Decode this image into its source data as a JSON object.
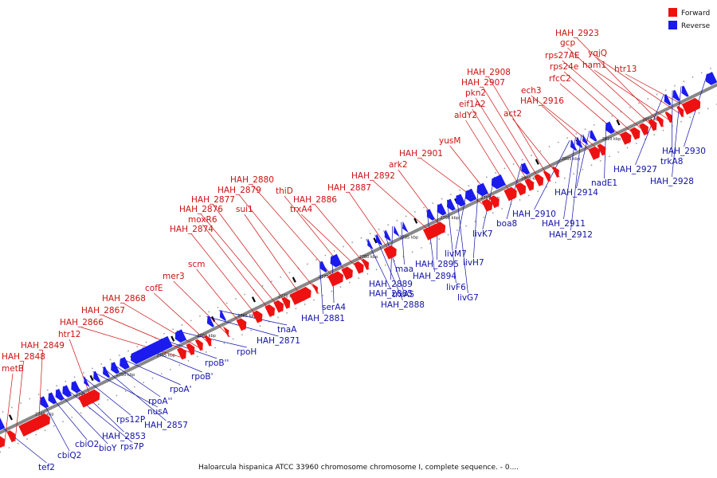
{
  "legend": {
    "forward": {
      "label": "Forward",
      "color": "#ee1111"
    },
    "reverse": {
      "label": "Reverse",
      "color": "#1b1bee"
    }
  },
  "caption": "Haloarcula hispanica ATCC 33960 chromosome chromosome I, complete sequence. - 0....",
  "axis": {
    "unit": "kbp",
    "ticks": [
      {
        "label": "2740 kbp",
        "kbp": 2740
      },
      {
        "label": "2745 kbp",
        "kbp": 2745
      },
      {
        "label": "2750 kbp",
        "kbp": 2750
      },
      {
        "label": "2755 kbp",
        "kbp": 2755
      },
      {
        "label": "2760 kbp",
        "kbp": 2760
      },
      {
        "label": "2765 kbp",
        "kbp": 2765
      },
      {
        "label": "2770 kbp",
        "kbp": 2770
      },
      {
        "label": "2775 kbp",
        "kbp": 2775
      },
      {
        "label": "2780 kbp",
        "kbp": 2780
      },
      {
        "label": "2785 kbp",
        "kbp": 2785
      },
      {
        "label": "2790 kbp",
        "kbp": 2790
      },
      {
        "label": "2795 kbp",
        "kbp": 2795
      },
      {
        "label": "2800 kbp",
        "kbp": 2800
      },
      {
        "label": "2805 kbp",
        "kbp": 2805
      },
      {
        "label": "2810 kbp",
        "kbp": 2810
      },
      {
        "label": "2815 kbp",
        "kbp": 2815
      }
    ]
  },
  "forward_genes": [
    {
      "name": "metB"
    },
    {
      "name": "HAH_2848"
    },
    {
      "name": "HAH_2849"
    },
    {
      "name": "htr12"
    },
    {
      "name": "HAH_2866"
    },
    {
      "name": "HAH_2867"
    },
    {
      "name": "HAH_2868"
    },
    {
      "name": "cofE"
    },
    {
      "name": "mer3"
    },
    {
      "name": "scm"
    },
    {
      "name": "HAH_2874"
    },
    {
      "name": "moxR6"
    },
    {
      "name": "HAH_2876"
    },
    {
      "name": "HAH_2877"
    },
    {
      "name": "sui1"
    },
    {
      "name": "HAH_2879"
    },
    {
      "name": "HAH_2880"
    },
    {
      "name": "thiD"
    },
    {
      "name": "trxA4"
    },
    {
      "name": "HAH_2886"
    },
    {
      "name": "HAH_2887"
    },
    {
      "name": "HAH_2892"
    },
    {
      "name": "ark2"
    },
    {
      "name": "HAH_2901"
    },
    {
      "name": "yusM"
    },
    {
      "name": "aldY2"
    },
    {
      "name": "eif1A2"
    },
    {
      "name": "pkn2"
    },
    {
      "name": "HAH_2907"
    },
    {
      "name": "HAH_2908"
    },
    {
      "name": "act2"
    },
    {
      "name": "HAH_2916"
    },
    {
      "name": "ech3"
    },
    {
      "name": "rfcC2"
    },
    {
      "name": "rps24e"
    },
    {
      "name": "rps27AE"
    },
    {
      "name": "gcp"
    },
    {
      "name": "HAH_2923"
    },
    {
      "name": "ham1"
    },
    {
      "name": "yqjQ"
    },
    {
      "name": "htr13"
    }
  ],
  "reverse_genes": [
    {
      "name": "tef2"
    },
    {
      "name": "cbiQ2"
    },
    {
      "name": "cbiO2"
    },
    {
      "name": "bioY"
    },
    {
      "name": "rps7P"
    },
    {
      "name": "HAH_2853"
    },
    {
      "name": "rps12P"
    },
    {
      "name": "nusA"
    },
    {
      "name": "HAH_2857"
    },
    {
      "name": "rpoA''"
    },
    {
      "name": "rpoA'"
    },
    {
      "name": "rpoB'"
    },
    {
      "name": "rpoB''"
    },
    {
      "name": "rpoH"
    },
    {
      "name": "HAH_2871"
    },
    {
      "name": "tnaA"
    },
    {
      "name": "HAH_2881"
    },
    {
      "name": "serA4"
    },
    {
      "name": "HAH_2885"
    },
    {
      "name": "HAH_2888"
    },
    {
      "name": "trxA5"
    },
    {
      "name": "HAH_2889"
    },
    {
      "name": "maa"
    },
    {
      "name": "HAH_2894"
    },
    {
      "name": "HAH_2895"
    },
    {
      "name": "livF6"
    },
    {
      "name": "livG7"
    },
    {
      "name": "livM7"
    },
    {
      "name": "livH7"
    },
    {
      "name": "livK7"
    },
    {
      "name": "boa8"
    },
    {
      "name": "HAH_2910"
    },
    {
      "name": "HAH_2911"
    },
    {
      "name": "HAH_2912"
    },
    {
      "name": "HAH_2914"
    },
    {
      "name": "nadE1"
    },
    {
      "name": "HAH_2927"
    },
    {
      "name": "trkA8"
    },
    {
      "name": "HAH_2928"
    },
    {
      "name": "HAH_2930"
    }
  ]
}
